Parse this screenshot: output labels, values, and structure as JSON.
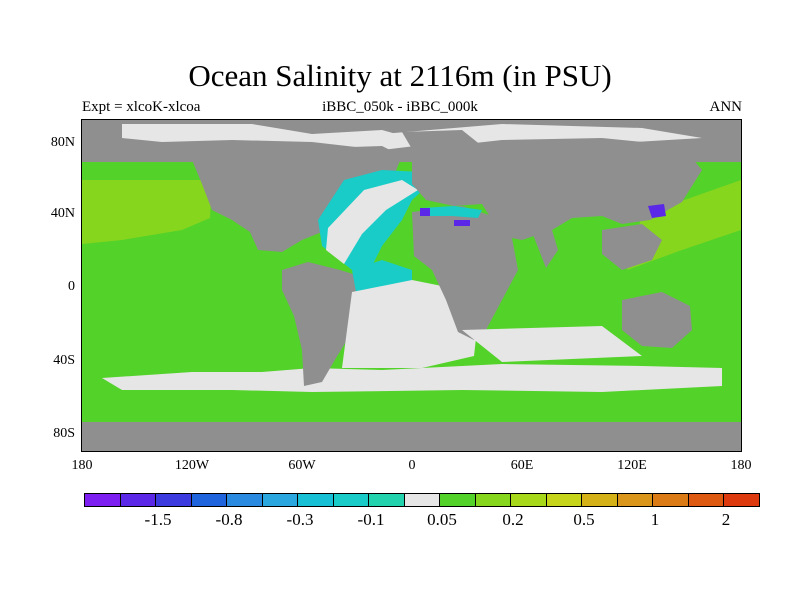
{
  "header": {
    "title": "Ocean Salinity at 2116m (in PSU)",
    "experiment": "Expt = xlcoK-xlcoa",
    "comparison": "iBBC_050k - iBBC_000k",
    "period": "ANN"
  },
  "axes": {
    "y_ticks": [
      "80N",
      "40N",
      "0",
      "40S",
      "80S"
    ],
    "x_ticks": [
      "180",
      "120W",
      "60W",
      "0",
      "60E",
      "120E",
      "180"
    ]
  },
  "colorbar": {
    "colors": [
      "#7d1ff0",
      "#5a28e6",
      "#3b3be0",
      "#1f64dc",
      "#2a8ae0",
      "#2ba7df",
      "#18c0d6",
      "#19ccc7",
      "#22d3ad",
      "#e6e6e6",
      "#53d22a",
      "#86d61d",
      "#a7d81a",
      "#c7d51a",
      "#d4b217",
      "#d9961a",
      "#db7b16",
      "#de5a12",
      "#dd3a10"
    ],
    "labels": [
      "-1.5",
      "-0.8",
      "-0.3",
      "-0.1",
      "0.05",
      "0.2",
      "0.5",
      "1",
      "2"
    ]
  },
  "map_colors": {
    "land": "#8f8f8f",
    "near_zero": "#e6e6e6",
    "positive_small": "#53d22a",
    "positive_mid": "#86d61d",
    "negative_small": "#22d3ad",
    "negative_mid": "#18c0d6",
    "negative_strong": "#5a28e6"
  }
}
